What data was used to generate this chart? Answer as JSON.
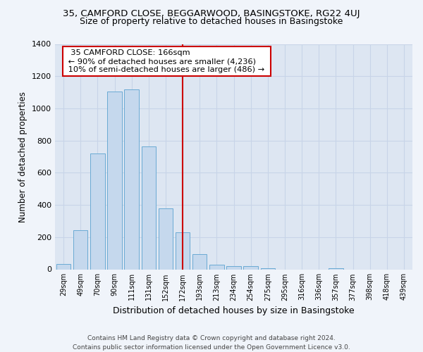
{
  "title": "35, CAMFORD CLOSE, BEGGARWOOD, BASINGSTOKE, RG22 4UJ",
  "subtitle": "Size of property relative to detached houses in Basingstoke",
  "xlabel": "Distribution of detached houses by size in Basingstoke",
  "ylabel": "Number of detached properties",
  "bar_labels": [
    "29sqm",
    "49sqm",
    "70sqm",
    "90sqm",
    "111sqm",
    "131sqm",
    "152sqm",
    "172sqm",
    "193sqm",
    "213sqm",
    "234sqm",
    "254sqm",
    "275sqm",
    "295sqm",
    "316sqm",
    "336sqm",
    "357sqm",
    "377sqm",
    "398sqm",
    "418sqm",
    "439sqm"
  ],
  "bar_values": [
    35,
    243,
    718,
    1103,
    1120,
    762,
    380,
    230,
    93,
    28,
    20,
    20,
    5,
    0,
    0,
    0,
    8,
    0,
    0,
    0,
    0
  ],
  "bar_color": "#c5d8ed",
  "bar_edge_color": "#6aaad4",
  "vline_x": 7.0,
  "vline_color": "#cc0000",
  "annotation_title": "35 CAMFORD CLOSE: 166sqm",
  "annotation_line1": "← 90% of detached houses are smaller (4,236)",
  "annotation_line2": "10% of semi-detached houses are larger (486) →",
  "annotation_box_facecolor": "#ffffff",
  "annotation_box_edgecolor": "#cc0000",
  "ylim": [
    0,
    1400
  ],
  "yticks": [
    0,
    200,
    400,
    600,
    800,
    1000,
    1200,
    1400
  ],
  "grid_color": "#c8d4e8",
  "plot_bg_color": "#dde6f2",
  "fig_bg_color": "#f0f4fa",
  "footer1": "Contains HM Land Registry data © Crown copyright and database right 2024.",
  "footer2": "Contains public sector information licensed under the Open Government Licence v3.0."
}
